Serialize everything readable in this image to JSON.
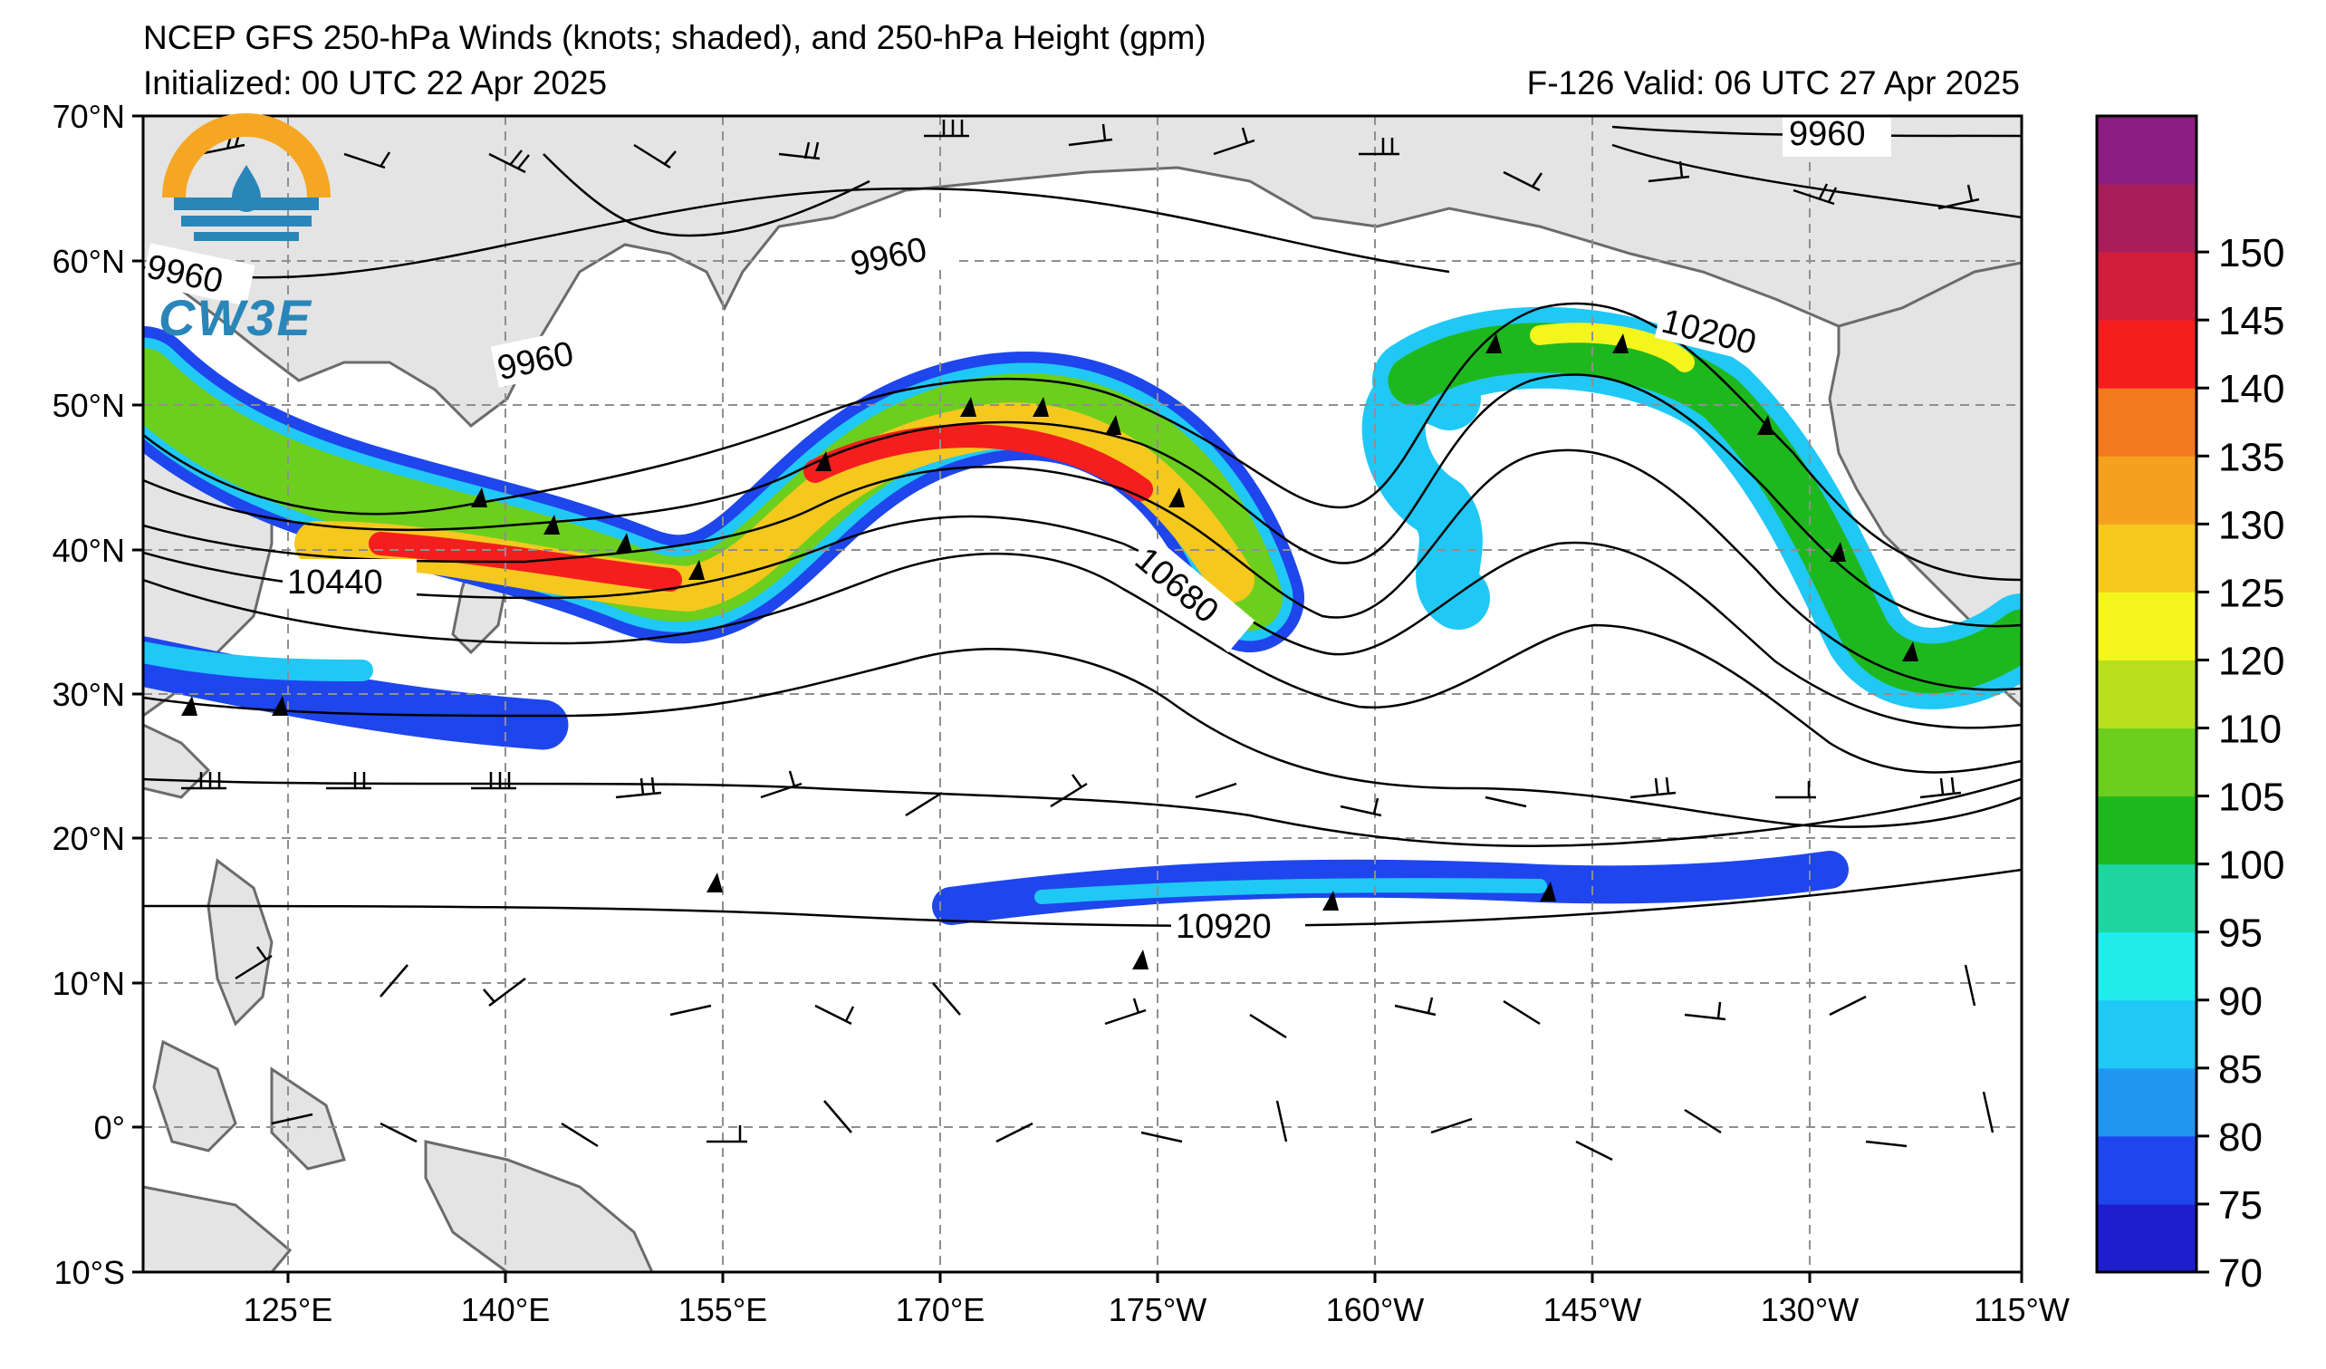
{
  "header": {
    "title_line1": "NCEP GFS 250-hPa Winds (knots; shaded), and 250-hPa Height (gpm)",
    "initialized": "Initialized: 00 UTC 22 Apr 2025",
    "valid": "F-126  Valid: 06 UTC 27 Apr 2025"
  },
  "logo": {
    "text": "CW3E",
    "colors": {
      "sun": "#f5a623",
      "water": "#2a86b8"
    }
  },
  "map": {
    "lat_labels": [
      "70°N",
      "60°N",
      "50°N",
      "40°N",
      "30°N",
      "20°N",
      "10°N",
      "0°",
      "10°S"
    ],
    "lon_labels": [
      "125°E",
      "140°E",
      "155°E",
      "170°E",
      "175°W",
      "160°W",
      "145°W",
      "130°W",
      "115°W"
    ],
    "contour_labels": [
      "9960",
      "9960",
      "9960",
      "9960",
      "10200",
      "10440",
      "10680",
      "10920"
    ],
    "land_color": "#e4e4e4",
    "coast_color": "#6b6b6b"
  },
  "colorbar": {
    "ticks": [
      "70",
      "75",
      "80",
      "85",
      "90",
      "95",
      "100",
      "105",
      "110",
      "120",
      "125",
      "130",
      "135",
      "140",
      "145",
      "150"
    ],
    "colors": [
      "#1e1ecf",
      "#1e46ec",
      "#2096f0",
      "#20c8f5",
      "#20ecec",
      "#20d6a0",
      "#1eb81e",
      "#6ccf1e",
      "#b8e01e",
      "#f5f51e",
      "#f5c81e",
      "#f5a01e",
      "#f57a1e",
      "#f51e1e",
      "#d21e3c",
      "#a81e5a",
      "#8c1e82"
    ]
  }
}
